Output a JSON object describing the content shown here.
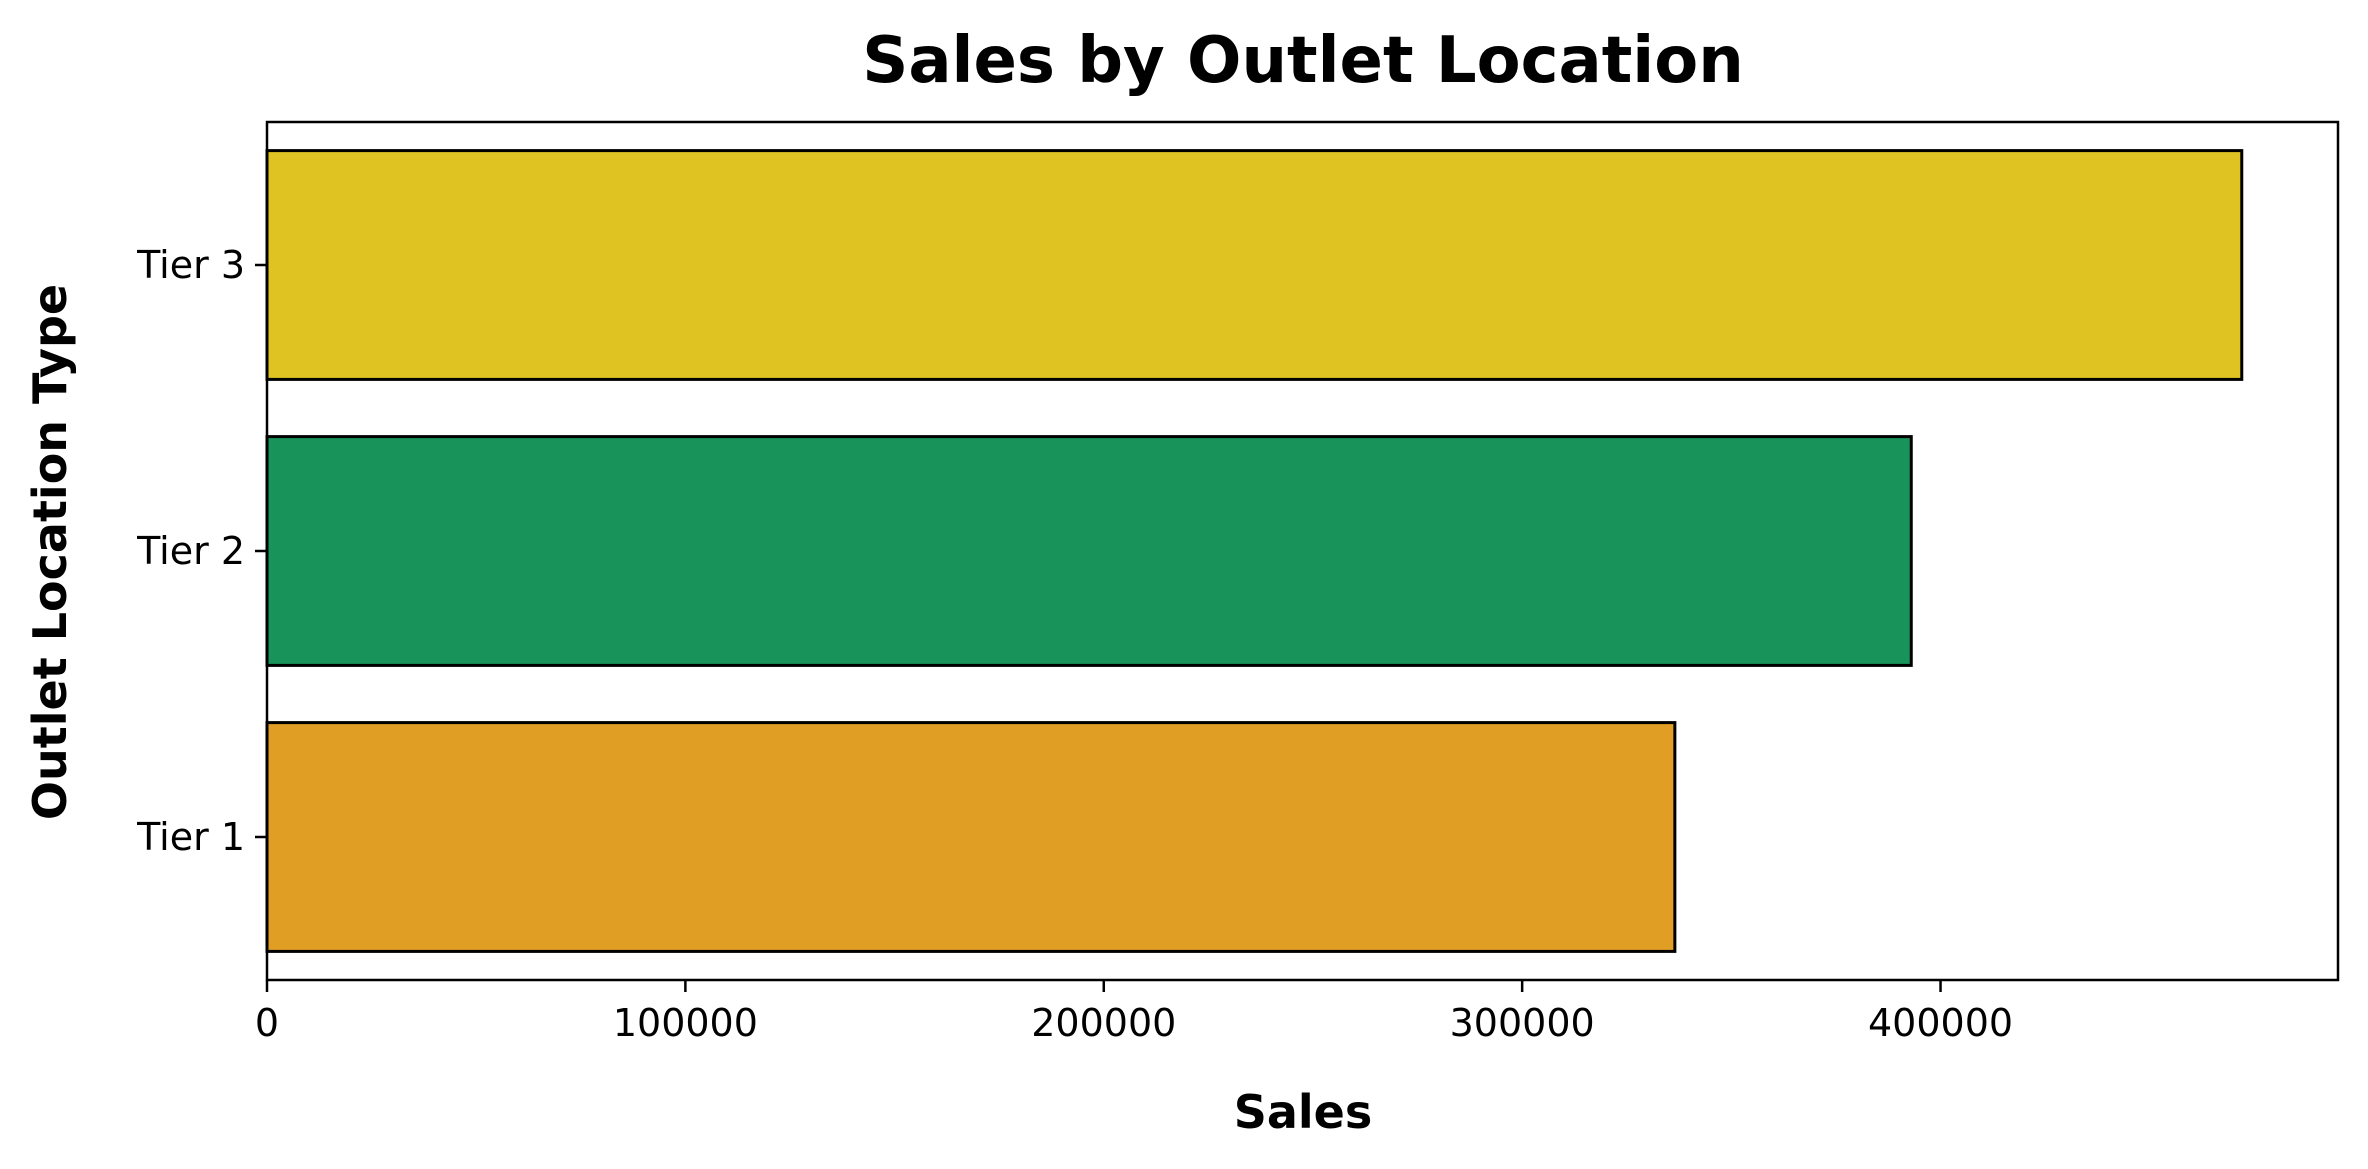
{
  "chart_data": {
    "type": "bar",
    "orientation": "horizontal",
    "title": "Sales by Outlet Location",
    "xlabel": "Sales",
    "ylabel": "Outlet Location Type",
    "categories": [
      "Tier 3",
      "Tier 2",
      "Tier 1"
    ],
    "values": [
      472000,
      393000,
      336500
    ],
    "colors": [
      "#DFC322",
      "#18935A",
      "#E09E24"
    ],
    "bar_edge_color": "#000000",
    "xlim": [
      0,
      495000
    ],
    "xticks": [
      0,
      100000,
      200000,
      300000,
      400000
    ],
    "xtick_labels": [
      "0",
      "100000",
      "200000",
      "300000",
      "400000"
    ],
    "grid": false,
    "legend": "none"
  }
}
